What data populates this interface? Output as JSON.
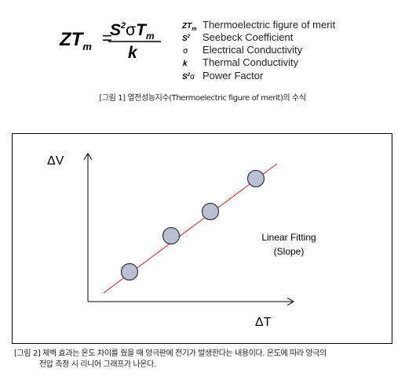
{
  "formula": {
    "lhs": "ZT",
    "lhs_sub": "m",
    "equals": "=",
    "num_s": "S",
    "num_sup": "2",
    "num_sigma": "σ",
    "num_t": "T",
    "num_sub": "m",
    "denominator": "k"
  },
  "legend": [
    {
      "symbol": "ZT",
      "symbol_sub": "m",
      "text": "Thermoelectric figure of merit"
    },
    {
      "symbol": "S",
      "symbol_sup": "2",
      "text": "Seebeck Coefficient"
    },
    {
      "symbol": "σ",
      "text": "Electrical Conductivity"
    },
    {
      "symbol": "k",
      "text": "Thermal Conductivity"
    },
    {
      "symbol": "S",
      "symbol_sup": "2",
      "symbol_tail": "σ",
      "text": "Power Factor"
    }
  ],
  "caption1": "[그림 1] 열전성능지수(Thermoelectric figure of merit)의 수식",
  "figure2": {
    "y_label": "ΔV",
    "x_label": "ΔT",
    "fit_label": "Linear Fitting",
    "fit_sub": "(Slope)"
  },
  "caption2": [
    "[그림 2] 제벡 효과는 온도 차이를 줬을 때 양극판에 전기가 발생한다는 내용이다. 온도에 따라 양극의",
    "전압 측정 시 리니어 그래프가 나온다."
  ]
}
